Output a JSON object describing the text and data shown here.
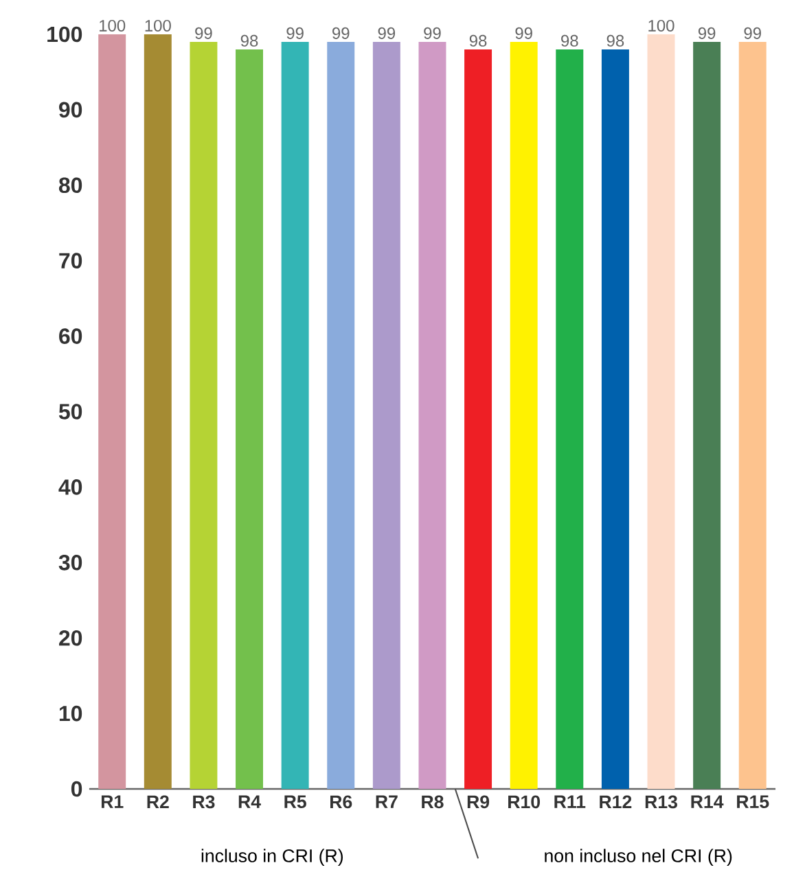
{
  "chart_data": {
    "type": "bar",
    "categories": [
      "R1",
      "R2",
      "R3",
      "R4",
      "R5",
      "R6",
      "R7",
      "R8",
      "R9",
      "R10",
      "R11",
      "R12",
      "R13",
      "R14",
      "R15"
    ],
    "values": [
      100,
      100,
      99,
      98,
      99,
      99,
      99,
      99,
      98,
      99,
      98,
      98,
      100,
      99,
      99
    ],
    "colors": [
      "#d3959f",
      "#a58b33",
      "#b5d334",
      "#73c04c",
      "#33b5b5",
      "#8aabdc",
      "#ac9acb",
      "#d09ac5",
      "#ee1f25",
      "#fff200",
      "#22b04a",
      "#0061ad",
      "#fddcca",
      "#4a7f55",
      "#fdc38e"
    ],
    "ylim": [
      0,
      100
    ],
    "yticks": [
      0,
      10,
      20,
      30,
      40,
      50,
      60,
      70,
      80,
      90,
      100
    ],
    "data_labels": true,
    "annotations": [
      "incluso in CRI (R)",
      "non incluso nel CRI (R)"
    ]
  }
}
